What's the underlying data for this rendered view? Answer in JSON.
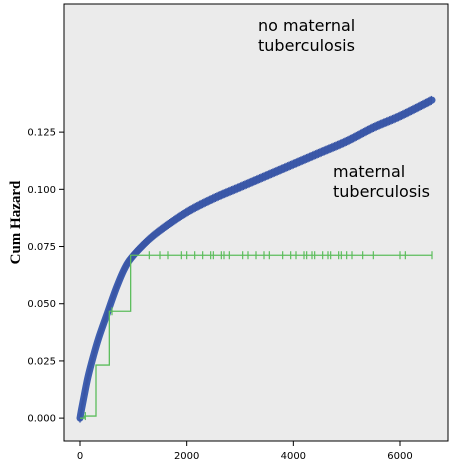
{
  "chart_data": {
    "type": "line",
    "title": "",
    "xlabel": "",
    "ylabel": "Cum Hazard",
    "xlim": [
      -300,
      6900
    ],
    "ylim": [
      -0.01,
      0.181
    ],
    "x_ticks": [
      0,
      2000,
      4000,
      6000
    ],
    "y_ticks": [
      0.0,
      0.025,
      0.05,
      0.075,
      0.1,
      0.125
    ],
    "x_tick_labels": [
      "0",
      "2000",
      "4000",
      "6000"
    ],
    "y_tick_labels": [
      "0.000",
      "0.025",
      "0.050",
      "0.075",
      "0.100",
      "0.125"
    ],
    "grid": false,
    "background": "#ebebeb",
    "annotations": [
      {
        "lines": [
          "no maternal",
          "tuberculosis"
        ],
        "series": "no maternal tuberculosis"
      },
      {
        "lines": [
          "maternal",
          "tuberculosis"
        ],
        "series": "maternal tuberculosis"
      }
    ],
    "series": [
      {
        "name": "no maternal tuberculosis",
        "color": "#3f5fb0",
        "style": "smooth",
        "x": [
          0,
          30,
          80,
          150,
          250,
          350,
          500,
          700,
          900,
          1200,
          1500,
          2000,
          2500,
          3000,
          3500,
          4000,
          4500,
          5000,
          5500,
          6000,
          6600
        ],
        "y": [
          0.0,
          0.004,
          0.01,
          0.018,
          0.027,
          0.035,
          0.045,
          0.058,
          0.068,
          0.076,
          0.082,
          0.09,
          0.096,
          0.101,
          0.106,
          0.111,
          0.116,
          0.121,
          0.127,
          0.132,
          0.139
        ]
      },
      {
        "name": "maternal tuberculosis",
        "color": "#5cbd5c",
        "style": "step",
        "x": [
          0,
          80,
          300,
          550,
          950,
          6600
        ],
        "y": [
          0.0,
          0.0009,
          0.0232,
          0.0467,
          0.0712,
          0.0712
        ],
        "censor_x": [
          100,
          600,
          1300,
          1500,
          1650,
          1900,
          2000,
          2150,
          2300,
          2450,
          2500,
          2650,
          2700,
          2800,
          3050,
          3150,
          3300,
          3450,
          3550,
          3800,
          3950,
          4050,
          4200,
          4250,
          4350,
          4400,
          4550,
          4650,
          4700,
          4850,
          4900,
          5000,
          5100,
          5300,
          5500,
          6000,
          6100,
          6600
        ]
      }
    ]
  }
}
